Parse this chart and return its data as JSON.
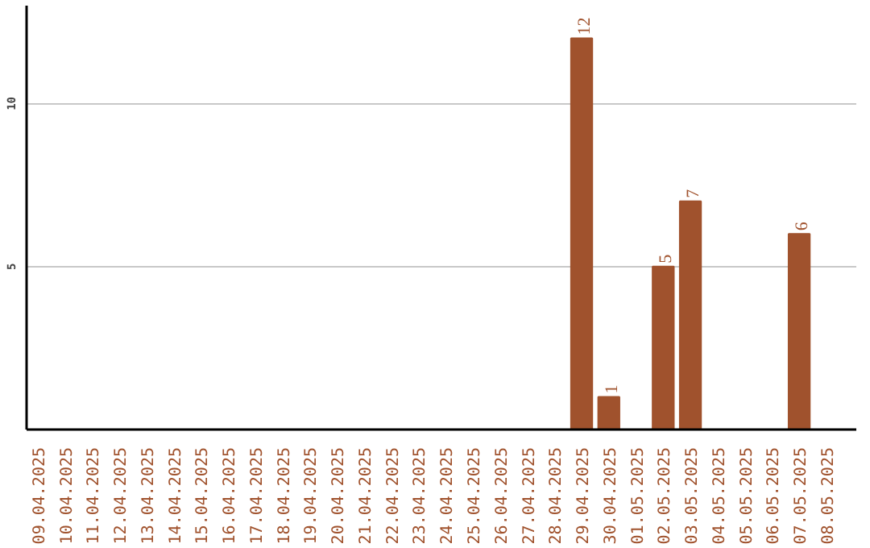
{
  "chart_data": {
    "type": "bar",
    "categories": [
      "09.04.2025",
      "10.04.2025",
      "11.04.2025",
      "12.04.2025",
      "13.04.2025",
      "14.04.2025",
      "15.04.2025",
      "16.04.2025",
      "17.04.2025",
      "18.04.2025",
      "19.04.2025",
      "20.04.2025",
      "21.04.2025",
      "22.04.2025",
      "23.04.2025",
      "24.04.2025",
      "25.04.2025",
      "26.04.2025",
      "27.04.2025",
      "28.04.2025",
      "29.04.2025",
      "30.04.2025",
      "01.05.2025",
      "02.05.2025",
      "03.05.2025",
      "04.05.2025",
      "05.05.2025",
      "06.05.2025",
      "07.05.2025",
      "08.05.2025"
    ],
    "values": [
      0,
      0,
      0,
      0,
      0,
      0,
      0,
      0,
      0,
      0,
      0,
      0,
      0,
      0,
      0,
      0,
      0,
      0,
      0,
      0,
      12,
      1,
      0,
      5,
      7,
      0,
      0,
      0,
      6,
      0
    ],
    "value_labels": [
      null,
      null,
      null,
      null,
      null,
      null,
      null,
      null,
      null,
      null,
      null,
      null,
      null,
      null,
      null,
      null,
      null,
      null,
      null,
      null,
      "12",
      "1",
      null,
      "5",
      "7",
      null,
      null,
      null,
      "6",
      null
    ],
    "color": "#a0522d",
    "ylim": [
      0,
      13
    ],
    "yticks": [
      5,
      10
    ],
    "grid": "y"
  }
}
